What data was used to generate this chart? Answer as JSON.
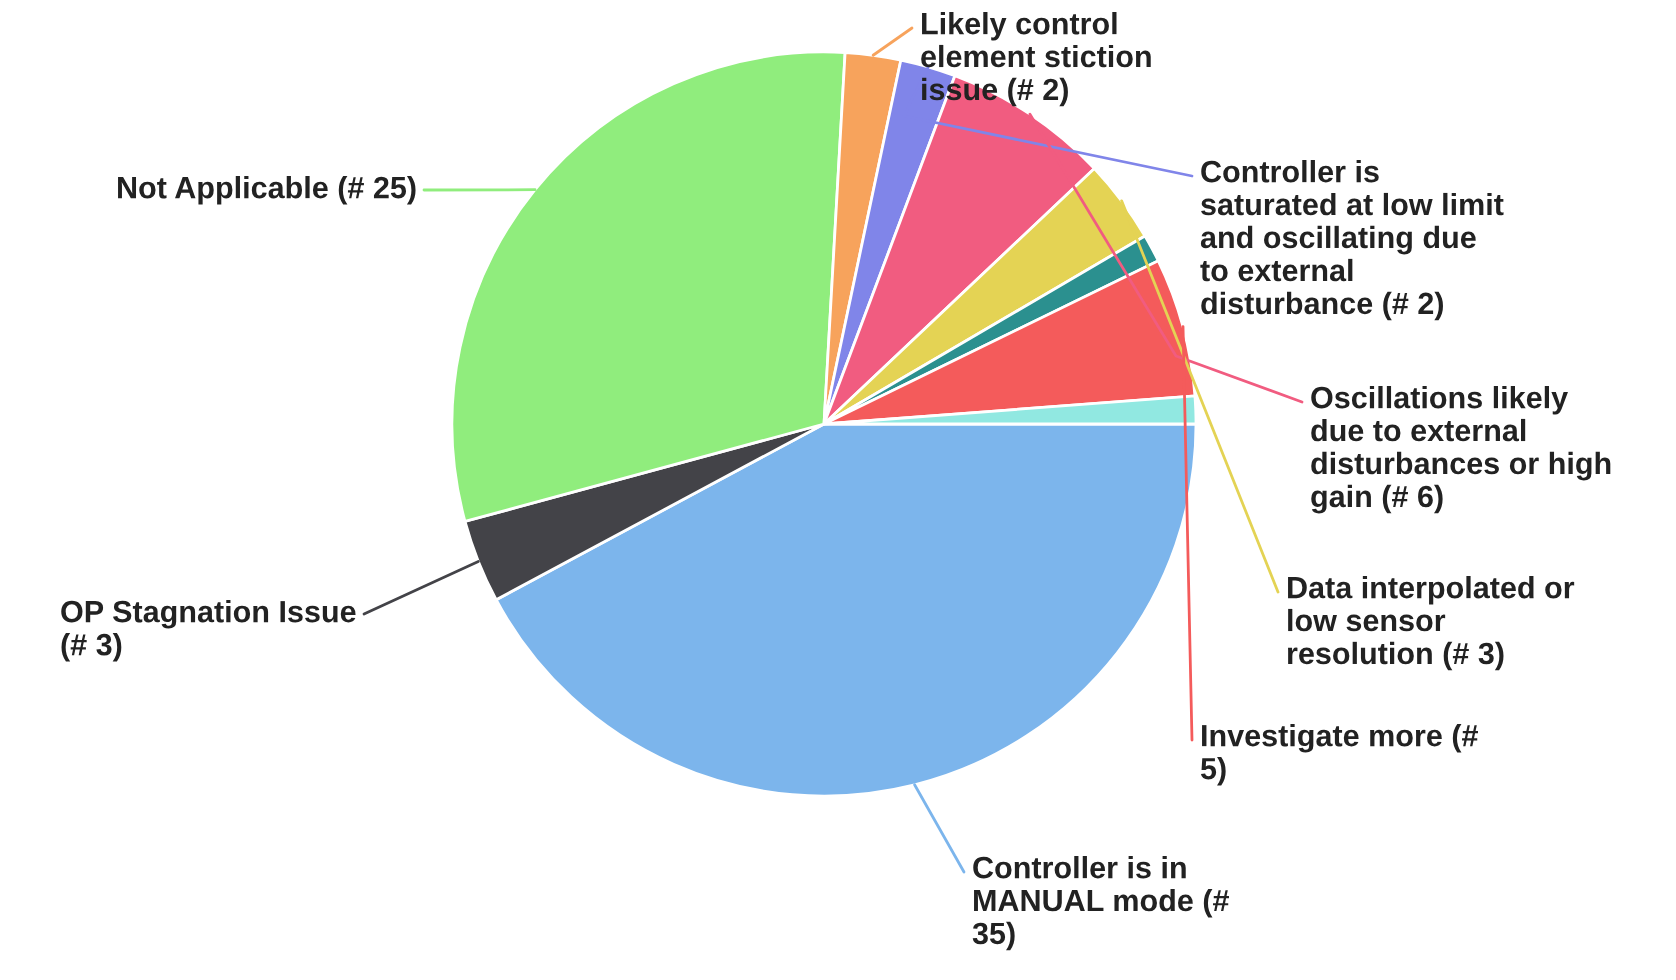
{
  "chart_data": {
    "type": "pie",
    "categories": [
      "Controller is in\nMANUAL mode (#\n35)",
      "OP Stagnation Issue\n(# 3)",
      "Not Applicable (# 25)",
      "Likely control\nelement stiction\nissue (# 2)",
      "Controller is\nsaturated at low limit\nand oscillating due\nto external\ndisturbance (# 2)",
      "Oscillations likely\ndue to external\ndisturbances or high\ngain (# 6)",
      "Data interpolated or\nlow sensor\nresolution (# 3)",
      null,
      "Investigate more (#\n5)",
      null
    ],
    "values": [
      35,
      3,
      25,
      2,
      2,
      6,
      3,
      1,
      5,
      1
    ],
    "colors": [
      "#7cb5ec",
      "#434348",
      "#90ed7d",
      "#f7a35c",
      "#8085e9",
      "#f15c80",
      "#e4d354",
      "#2b908f",
      "#f45b5b",
      "#91e8e1"
    ]
  }
}
